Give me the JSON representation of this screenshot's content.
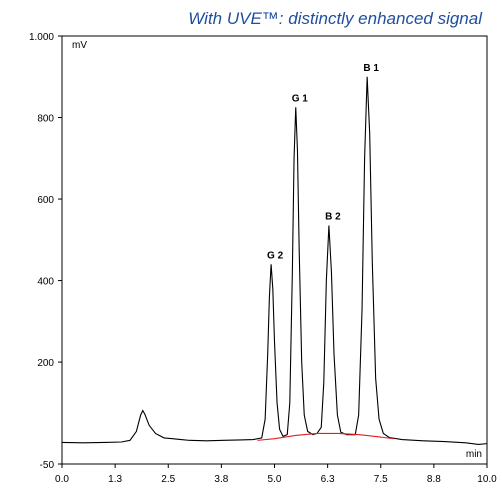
{
  "chart_data": {
    "type": "line",
    "title": "With UVE™: distinctly enhanced signal",
    "y_label": "mV",
    "x_label": "min",
    "xlim": [
      0,
      10
    ],
    "ylim": [
      -50,
      1000
    ],
    "xticks": [
      {
        "value": 0,
        "label": "0.0"
      },
      {
        "value": 1.25,
        "label": "1.3"
      },
      {
        "value": 2.5,
        "label": "2.5"
      },
      {
        "value": 3.75,
        "label": "3.8"
      },
      {
        "value": 5,
        "label": "5.0"
      },
      {
        "value": 6.25,
        "label": "6.3"
      },
      {
        "value": 7.5,
        "label": "7.5"
      },
      {
        "value": 8.75,
        "label": "8.8"
      },
      {
        "value": 10,
        "label": "10.0"
      }
    ],
    "yticks": [
      -50,
      200,
      400,
      600,
      800,
      {
        "value": 1000,
        "label": "1.000"
      }
    ],
    "series": [
      {
        "color": "#000000",
        "x": [
          0.0,
          0.5,
          1.0,
          1.4,
          1.6,
          1.75,
          1.85,
          1.9,
          1.95,
          2.05,
          2.2,
          2.4,
          2.6,
          2.8,
          3.0,
          3.4,
          3.8,
          4.2,
          4.5,
          4.7,
          4.78,
          4.84,
          4.88,
          4.92,
          4.96,
          5.0,
          5.06,
          5.12,
          5.2,
          5.3,
          5.36,
          5.42,
          5.46,
          5.5,
          5.54,
          5.58,
          5.64,
          5.7,
          5.78,
          5.9,
          6.0,
          6.1,
          6.16,
          6.22,
          6.28,
          6.34,
          6.4,
          6.48,
          6.56,
          6.7,
          6.9,
          6.98,
          7.06,
          7.12,
          7.18,
          7.24,
          7.3,
          7.38,
          7.46,
          7.56,
          7.7,
          8.0,
          8.5,
          9.0,
          9.5,
          9.8,
          10.0
        ],
        "values": [
          3,
          2,
          3,
          4,
          8,
          30,
          70,
          81,
          72,
          45,
          25,
          14,
          12,
          10,
          8,
          7,
          8,
          9,
          10,
          14,
          60,
          220,
          360,
          440,
          380,
          250,
          100,
          35,
          18,
          22,
          100,
          420,
          700,
          825,
          720,
          480,
          200,
          70,
          30,
          22,
          25,
          40,
          150,
          400,
          535,
          420,
          220,
          70,
          28,
          22,
          22,
          70,
          330,
          700,
          900,
          760,
          450,
          160,
          60,
          25,
          15,
          10,
          7,
          5,
          2,
          -2,
          0
        ]
      },
      {
        "color": "#e02020",
        "x": [
          4.6,
          5.0,
          5.5,
          6.0,
          6.5,
          7.0,
          7.5,
          7.8
        ],
        "values": [
          8,
          12,
          20,
          25,
          25,
          22,
          16,
          12
        ]
      }
    ],
    "annotations": [
      {
        "text": "G 2",
        "x": 4.92,
        "y": 440
      },
      {
        "text": "G 1",
        "x": 5.5,
        "y": 825
      },
      {
        "text": "B 2",
        "x": 6.28,
        "y": 535
      },
      {
        "text": "B 1",
        "x": 7.18,
        "y": 900
      }
    ]
  }
}
